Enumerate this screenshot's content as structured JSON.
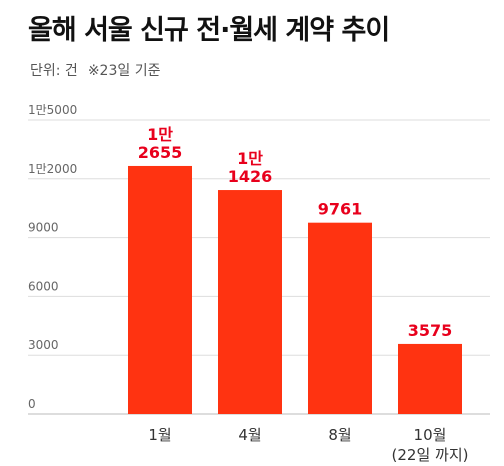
{
  "title": "올해 서울 신규 전·월세 계약 추이",
  "unit_note": "단위: 건",
  "date_note": "※23일 기준",
  "colors": {
    "bar": "#ff3311",
    "value_label": "#e8001c",
    "grid": "#dddddd"
  },
  "chart_data": {
    "type": "bar",
    "title": "올해 서울 신규 전·월세 계약 추이",
    "xlabel": "",
    "ylabel": "",
    "categories": [
      "1월",
      "4월",
      "8월",
      "10월"
    ],
    "category_sublabels": [
      "",
      "",
      "",
      "(22일 까지)"
    ],
    "values": [
      12655,
      11426,
      9761,
      3575
    ],
    "value_labels": [
      [
        "1만",
        "2655"
      ],
      [
        "1만",
        "1426"
      ],
      [
        "9761"
      ],
      [
        "3575"
      ]
    ],
    "yticks": [
      0,
      3000,
      6000,
      9000,
      12000,
      15000
    ],
    "ytick_labels": [
      "0",
      "3000",
      "6000",
      "9000",
      "1만2000",
      "1만5000"
    ],
    "ylim": [
      0,
      15000
    ],
    "grid": true,
    "legend": "none"
  }
}
